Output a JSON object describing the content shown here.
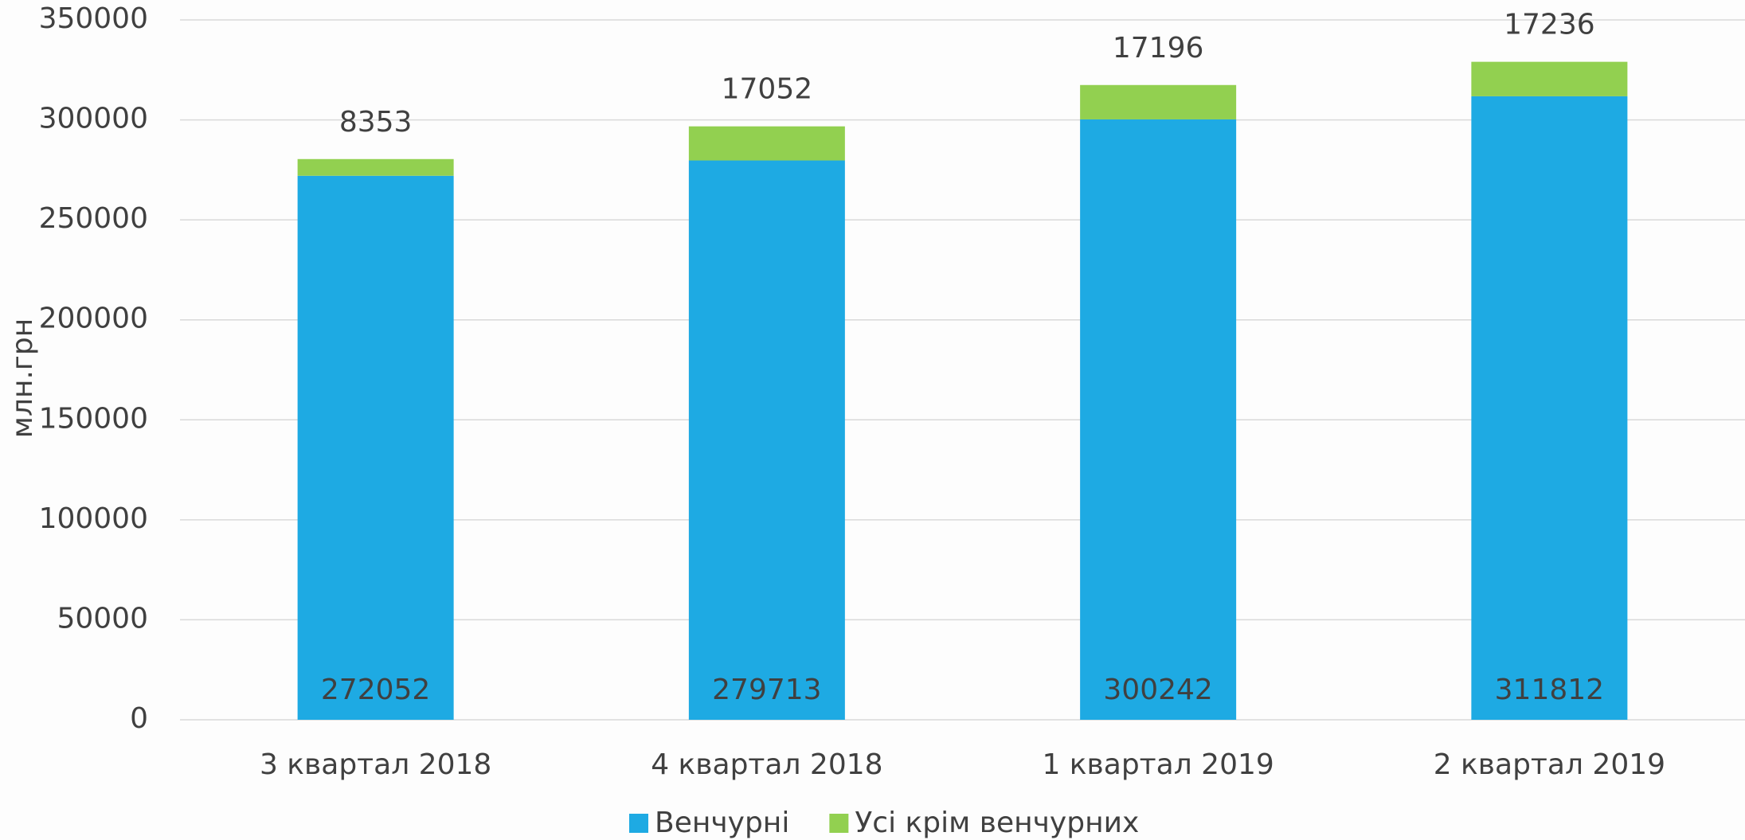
{
  "chart_data": {
    "type": "stacked_bar",
    "y_axis_label": "млн.грн",
    "categories": [
      "3 квартал 2018",
      "4 квартал 2018",
      "1 квартал 2019",
      "2 квартал 2019"
    ],
    "series": [
      {
        "name": "Венчурні",
        "color": "#1eaae3",
        "values": [
          272052,
          279713,
          300242,
          311812
        ]
      },
      {
        "name": "Усі крім венчурних",
        "color": "#92d050",
        "values": [
          8353,
          17052,
          17196,
          17236
        ]
      }
    ],
    "ylim": [
      0,
      350000
    ],
    "yticks": [
      0,
      50000,
      100000,
      150000,
      200000,
      250000,
      300000,
      350000
    ],
    "grid": true,
    "legend": "bottom"
  }
}
